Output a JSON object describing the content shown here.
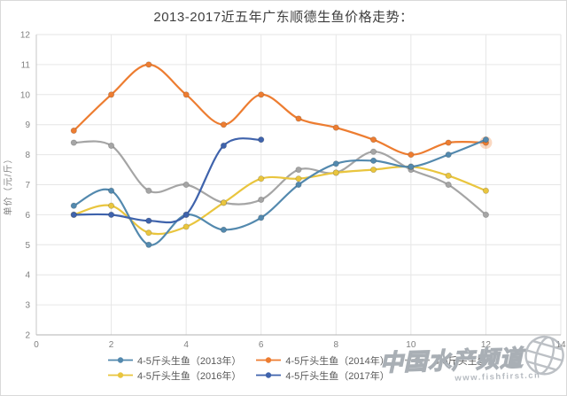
{
  "chart_data": {
    "type": "line",
    "title": "2013-2017近五年广东顺德生鱼价格走势：",
    "xlabel": "",
    "ylabel": "单价（元/斤）",
    "xlim": [
      0,
      14
    ],
    "ylim": [
      2,
      12
    ],
    "x_ticks": [
      0,
      2,
      4,
      6,
      8,
      10,
      12,
      14
    ],
    "y_tick_step": 1,
    "grid": true,
    "smooth_lines": true,
    "legend_position": "bottom-left",
    "x": [
      1,
      2,
      3,
      4,
      5,
      6,
      7,
      8,
      9,
      10,
      11,
      12
    ],
    "series": [
      {
        "name": "4-5斤头生鱼（2013年）",
        "label": "4-5斤头生鱼（2013年）",
        "color": "#5389ae",
        "values": [
          6.3,
          6.8,
          5.0,
          6.0,
          5.5,
          5.9,
          7.0,
          7.7,
          7.8,
          7.6,
          8.0,
          8.5
        ]
      },
      {
        "name": "4-5斤头生鱼（2014年）",
        "label": "4-5斤头生鱼（2014年）",
        "color": "#ed7d31",
        "values": [
          8.8,
          10.0,
          11.0,
          10.0,
          9.0,
          10.0,
          9.2,
          8.9,
          8.5,
          8.0,
          8.4,
          8.4
        ]
      },
      {
        "name": "4-5斤头生鱼（2015年）",
        "label": "4-5斤头生鱼",
        "color": "#a5a5a5",
        "values": [
          8.4,
          8.3,
          6.8,
          7.0,
          6.4,
          6.5,
          7.5,
          7.4,
          8.1,
          7.5,
          7.0,
          6.0
        ]
      },
      {
        "name": "4-5斤头生鱼（2016年）",
        "label": "4-5斤头生鱼（2016年）",
        "color": "#e9c53e",
        "values": [
          6.0,
          6.3,
          5.4,
          5.6,
          6.4,
          7.2,
          7.2,
          7.4,
          7.5,
          7.6,
          7.3,
          6.8
        ]
      },
      {
        "name": "4-5斤头生鱼（2017年）",
        "label": "4-5斤头生鱼（2017年）",
        "color": "#3f63ac",
        "values": [
          6.0,
          6.0,
          5.8,
          6.0,
          8.3,
          8.5
        ]
      }
    ]
  },
  "watermark": {
    "text": "中国水产频道",
    "url": "www.fishfirst.cn",
    "icon": "globe-icon"
  }
}
